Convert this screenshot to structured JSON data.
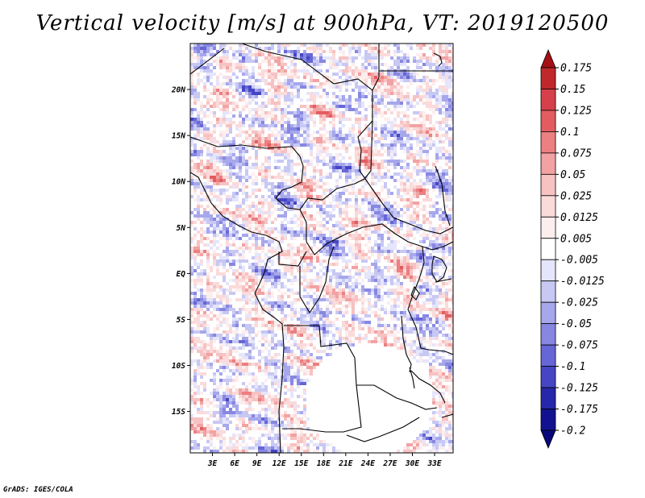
{
  "chart_data": {
    "type": "heatmap",
    "title": "Vertical velocity [m/s] at 900hPa, VT: 2019120500",
    "variable": "Vertical velocity",
    "units": "m/s",
    "level": "900hPa",
    "valid_time": "2019120500",
    "xlim": [
      0,
      35.5
    ],
    "ylim": [
      -19.5,
      25
    ],
    "x_ticks": [
      {
        "value": 3,
        "label": "3E"
      },
      {
        "value": 6,
        "label": "6E"
      },
      {
        "value": 9,
        "label": "9E"
      },
      {
        "value": 12,
        "label": "12E"
      },
      {
        "value": 15,
        "label": "15E"
      },
      {
        "value": 18,
        "label": "18E"
      },
      {
        "value": 21,
        "label": "21E"
      },
      {
        "value": 24,
        "label": "24E"
      },
      {
        "value": 27,
        "label": "27E"
      },
      {
        "value": 30,
        "label": "30E"
      },
      {
        "value": 33,
        "label": "33E"
      }
    ],
    "y_ticks": [
      {
        "value": 20,
        "label": "20N"
      },
      {
        "value": 15,
        "label": "15N"
      },
      {
        "value": 10,
        "label": "10N"
      },
      {
        "value": 5,
        "label": "5N"
      },
      {
        "value": 0,
        "label": "EQ"
      },
      {
        "value": -5,
        "label": "5S"
      },
      {
        "value": -10,
        "label": "10S"
      },
      {
        "value": -15,
        "label": "15S"
      }
    ],
    "colorbar": {
      "labels": [
        "0.175",
        "0.15",
        "0.125",
        "0.1",
        "0.075",
        "0.05",
        "0.025",
        "0.0125",
        "0.005",
        "-0.005",
        "-0.0125",
        "-0.025",
        "-0.05",
        "-0.075",
        "-0.1",
        "-0.125",
        "-0.175",
        "-0.2"
      ],
      "colors": [
        "#a50f15",
        "#c0282b",
        "#d6404a",
        "#e35d60",
        "#ec7f80",
        "#f2a2a2",
        "#f7c2c2",
        "#fbdada",
        "#fdeeee",
        "#ffffff",
        "#e5e5fb",
        "#c8c8f4",
        "#a7a7ec",
        "#8787e2",
        "#6666d6",
        "#4646c4",
        "#2727aa",
        "#121290",
        "#07077a"
      ]
    }
  },
  "credit": "GrADS: IGES/COLA"
}
